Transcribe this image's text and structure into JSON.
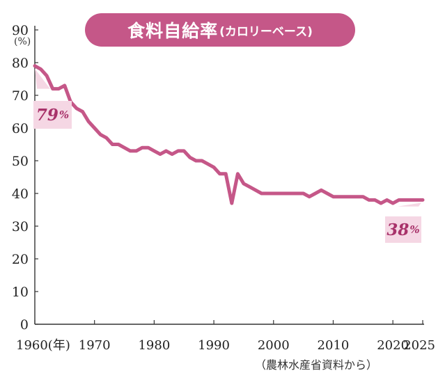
{
  "title": {
    "main": "食料自給率",
    "sub": "(カロリーベース)"
  },
  "source_note": "（農林水産省資料から）",
  "colors": {
    "accent": "#c55788",
    "accent_dark": "#a8326a",
    "callout_bg": "#f5d7e4",
    "line": "#c55788",
    "axis": "#333333"
  },
  "callouts": [
    {
      "value": "79",
      "unit": "%"
    },
    {
      "value": "38",
      "unit": "%"
    }
  ],
  "chart_data": {
    "type": "line",
    "title": "食料自給率(カロリーベース)",
    "ylabel": "(%)",
    "ylim": [
      0,
      90
    ],
    "xlim": [
      1960,
      2025
    ],
    "y_ticks": [
      0,
      10,
      20,
      30,
      40,
      50,
      60,
      70,
      80,
      90
    ],
    "x_ticks": [
      {
        "value": 1960,
        "label": "1960(年)"
      },
      {
        "value": 1970,
        "label": "1970"
      },
      {
        "value": 1980,
        "label": "1980"
      },
      {
        "value": 1990,
        "label": "1990"
      },
      {
        "value": 2000,
        "label": "2000"
      },
      {
        "value": 2010,
        "label": "2010"
      },
      {
        "value": 2020,
        "label": "2020"
      },
      {
        "value": 2025,
        "label": "2025"
      }
    ],
    "grid": false,
    "series": [
      {
        "x": [
          1960,
          1961,
          1962,
          1963,
          1964,
          1965,
          1966,
          1967,
          1968,
          1969,
          1970,
          1971,
          1972,
          1973,
          1974,
          1975,
          1976,
          1977,
          1978,
          1979,
          1980,
          1981,
          1982,
          1983,
          1984,
          1985,
          1986,
          1987,
          1988,
          1989,
          1990,
          1991,
          1992,
          1993,
          1994,
          1995,
          1996,
          1997,
          1998,
          1999,
          2000,
          2001,
          2002,
          2003,
          2004,
          2005,
          2006,
          2007,
          2008,
          2009,
          2010,
          2011,
          2012,
          2013,
          2014,
          2015,
          2016,
          2017,
          2018,
          2019,
          2020,
          2021,
          2022,
          2023,
          2024,
          2025
        ],
        "y": [
          79,
          78,
          76,
          72,
          72,
          73,
          68,
          66,
          65,
          62,
          60,
          58,
          57,
          55,
          55,
          54,
          53,
          53,
          54,
          54,
          53,
          52,
          53,
          52,
          53,
          53,
          51,
          50,
          50,
          49,
          48,
          46,
          46,
          37,
          46,
          43,
          42,
          41,
          40,
          40,
          40,
          40,
          40,
          40,
          40,
          40,
          39,
          40,
          41,
          40,
          39,
          39,
          39,
          39,
          39,
          39,
          38,
          38,
          37,
          38,
          37,
          38,
          38,
          38,
          38,
          38
        ]
      }
    ]
  }
}
